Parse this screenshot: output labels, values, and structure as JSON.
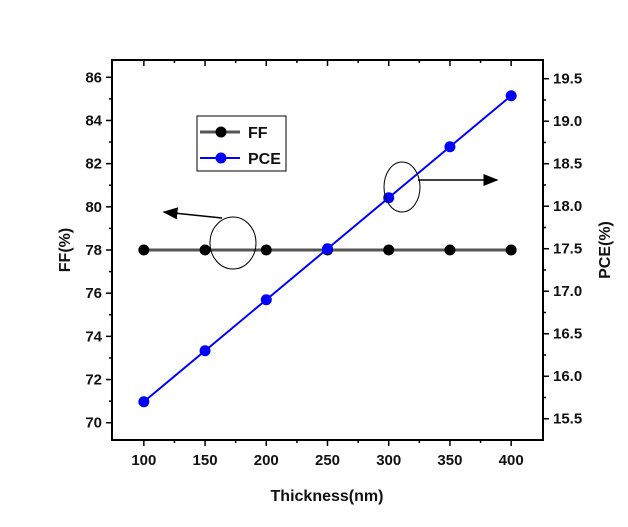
{
  "chart_data": {
    "type": "line",
    "title": "",
    "xlabel": "Thickness(nm)",
    "ylabel_left": "FF(%)",
    "ylabel_right": "PCE(%)",
    "x": [
      100,
      150,
      200,
      250,
      300,
      350,
      400
    ],
    "xlim": [
      74,
      426
    ],
    "ylim_left": [
      69.2,
      86.8
    ],
    "ylim_right": [
      15.25,
      19.72
    ],
    "x_ticks": [
      100,
      150,
      200,
      250,
      300,
      350,
      400
    ],
    "y_left_ticks": [
      70,
      72,
      74,
      76,
      78,
      80,
      82,
      84,
      86
    ],
    "y_right_ticks": [
      15.5,
      16.0,
      16.5,
      17.0,
      17.5,
      18.0,
      18.5,
      19.0,
      19.5
    ],
    "grid": false,
    "legend_position": "top-left",
    "series": [
      {
        "name": "FF",
        "axis": "left",
        "color": "#555555",
        "marker_color": "#000000",
        "values": [
          78,
          78,
          78,
          78,
          78,
          78,
          78
        ]
      },
      {
        "name": "PCE",
        "axis": "right",
        "color": "#0000ff",
        "marker_color": "#0000ff",
        "values": [
          15.7,
          16.3,
          16.9,
          17.5,
          18.1,
          18.7,
          19.3
        ]
      }
    ],
    "annotations": [
      {
        "type": "ellipse-arrow",
        "target": "FF",
        "direction": "left"
      },
      {
        "type": "ellipse-arrow",
        "target": "PCE",
        "direction": "right"
      }
    ]
  }
}
